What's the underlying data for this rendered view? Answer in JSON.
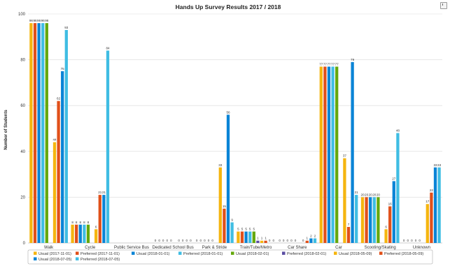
{
  "chart_data": {
    "type": "bar",
    "title": "Hands Up Survey Results 2017 / 2018",
    "xlabel": "",
    "ylabel": "Number of Students",
    "ylim": [
      0,
      100
    ],
    "yticks": [
      0,
      20,
      40,
      60,
      80,
      100
    ],
    "grid": true,
    "legend_position": "bottom",
    "categories": [
      "Walk",
      "Cycle",
      "Public Service Bus",
      "Dedicated School Bus",
      "Park & Stride",
      "Train/Tube/Metro",
      "Car Share",
      "Car",
      "Scooting/Skating",
      "Unknown"
    ],
    "series": [
      {
        "name": "Usual (2017-11-01)",
        "color": "#f5b50f",
        "values": [
          96,
          8,
          null,
          0,
          0,
          5,
          0,
          77,
          20,
          0
        ]
      },
      {
        "name": "Preferred (2017-11-01)",
        "color": "#e0501a",
        "values": [
          96,
          8,
          null,
          0,
          0,
          5,
          0,
          77,
          20,
          0
        ]
      },
      {
        "name": "Usual (2018-01-01)",
        "color": "#0a84d6",
        "values": [
          96,
          8,
          null,
          0,
          0,
          5,
          0,
          77,
          20,
          0
        ]
      },
      {
        "name": "Preferred (2018-01-01)",
        "color": "#3fbde3",
        "values": [
          96,
          8,
          null,
          0,
          0,
          5,
          0,
          77,
          20,
          0
        ]
      },
      {
        "name": "Usual (2018-02-01)",
        "color": "#65a80d",
        "values": [
          96,
          8,
          null,
          0,
          0,
          5,
          0,
          77,
          20,
          0
        ]
      },
      {
        "name": "Preferred (2018-02-01)",
        "color": "#5b4ea3",
        "values": [
          null,
          null,
          null,
          null,
          null,
          1,
          null,
          null,
          null,
          null
        ]
      },
      {
        "name": "Usual (2018-05-09)",
        "color": "#f5b50f",
        "values": [
          44,
          6,
          null,
          0,
          33,
          1,
          0,
          37,
          6,
          17
        ]
      },
      {
        "name": "Preferred (2018-05-09)",
        "color": "#e0501a",
        "values": [
          62,
          21,
          null,
          0,
          15,
          1,
          1,
          7,
          16,
          22
        ]
      },
      {
        "name": "Usual (2018-07-05)",
        "color": "#0a84d6",
        "values": [
          75,
          21,
          null,
          0,
          56,
          0,
          2,
          79,
          27,
          33
        ]
      },
      {
        "name": "Preferred (2018-07-05)",
        "color": "#3fbde3",
        "values": [
          93,
          84,
          null,
          0,
          9,
          0,
          2,
          21,
          48,
          33
        ]
      }
    ]
  },
  "legend": {
    "items": [
      {
        "label": "Usual (2017-11-01)",
        "color": "#f5b50f"
      },
      {
        "label": "Preferred (2017-11-01)",
        "color": "#e0501a"
      },
      {
        "label": "Usual (2018-01-01)",
        "color": "#0a84d6"
      },
      {
        "label": "Preferred (2018-01-01)",
        "color": "#3fbde3"
      },
      {
        "label": "Usual (2018-02-01)",
        "color": "#65a80d"
      },
      {
        "label": "Preferred (2018-02-01)",
        "color": "#5b4ea3"
      },
      {
        "label": "Usual (2018-05-09)",
        "color": "#f5b50f"
      },
      {
        "label": "Preferred (2018-05-09)",
        "color": "#e0501a"
      },
      {
        "label": "Usual (2018-07-05)",
        "color": "#0a84d6"
      },
      {
        "label": "Preferred (2018-07-05)",
        "color": "#3fbde3"
      }
    ]
  },
  "toolbar": {
    "export_icon": "export-menu-icon"
  }
}
